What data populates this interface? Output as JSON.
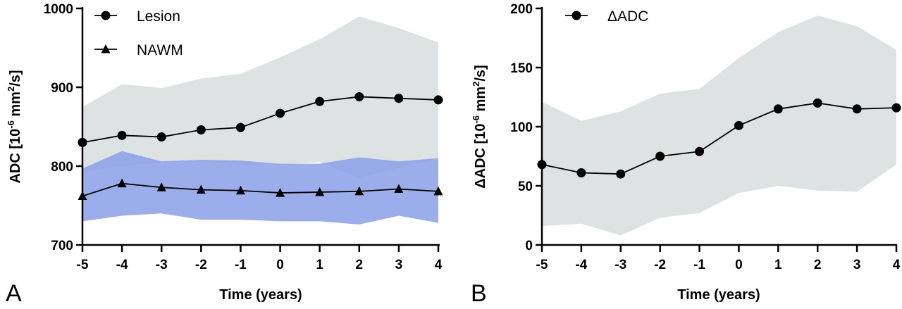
{
  "chart_data": [
    {
      "type": "line",
      "panel_label": "A",
      "xlabel": "Time (years)",
      "ylabel": "ADC [10",
      "ylabel_sup1": "-6",
      "ylabel_mid": " mm",
      "ylabel_sup2": "2",
      "ylabel_end": "/s]",
      "x": [
        -5,
        -4,
        -3,
        -2,
        -1,
        0,
        1,
        2,
        3,
        4
      ],
      "xlim": [
        -5,
        4
      ],
      "ylim": [
        700,
        1000
      ],
      "yticks": [
        700,
        800,
        900,
        1000
      ],
      "legend_position": "top-left",
      "series": [
        {
          "name": "Lesion",
          "marker": "circle",
          "values": [
            830,
            839,
            837,
            846,
            849,
            867,
            882,
            888,
            886,
            884
          ],
          "band_upper": [
            875,
            904,
            899,
            911,
            917,
            938,
            961,
            990,
            975,
            957
          ],
          "band_lower": [
            793,
            800,
            805,
            806,
            802,
            802,
            805,
            785,
            798,
            810
          ],
          "band_color": "#dde3e2"
        },
        {
          "name": "NAWM",
          "marker": "triangle",
          "values": [
            762,
            778,
            773,
            770,
            769,
            766,
            767,
            768,
            771,
            768
          ],
          "band_upper": [
            797,
            819,
            806,
            808,
            807,
            803,
            803,
            811,
            806,
            810
          ],
          "band_lower": [
            730,
            737,
            740,
            732,
            732,
            730,
            730,
            726,
            737,
            728
          ],
          "band_color": "#8aa0e8"
        }
      ]
    },
    {
      "type": "line",
      "panel_label": "B",
      "xlabel": "Time (years)",
      "ylabel": "ΔADC [10",
      "ylabel_sup1": "-6",
      "ylabel_mid": " mm",
      "ylabel_sup2": "2",
      "ylabel_end": "/s]",
      "x": [
        -5,
        -4,
        -3,
        -2,
        -1,
        0,
        1,
        2,
        3,
        4
      ],
      "xlim": [
        -5,
        4
      ],
      "ylim": [
        0,
        200
      ],
      "yticks": [
        0,
        50,
        100,
        150,
        200
      ],
      "legend_position": "top-left",
      "series": [
        {
          "name": "ΔADC",
          "marker": "circle",
          "values": [
            68,
            61,
            60,
            75,
            79,
            101,
            115,
            120,
            115,
            116
          ],
          "band_upper": [
            121,
            105,
            113,
            128,
            132,
            158,
            180,
            194,
            185,
            165
          ],
          "band_lower": [
            16,
            18,
            8,
            23,
            27,
            44,
            50,
            46,
            45,
            68
          ],
          "band_color": "#dde3e2"
        }
      ]
    }
  ]
}
